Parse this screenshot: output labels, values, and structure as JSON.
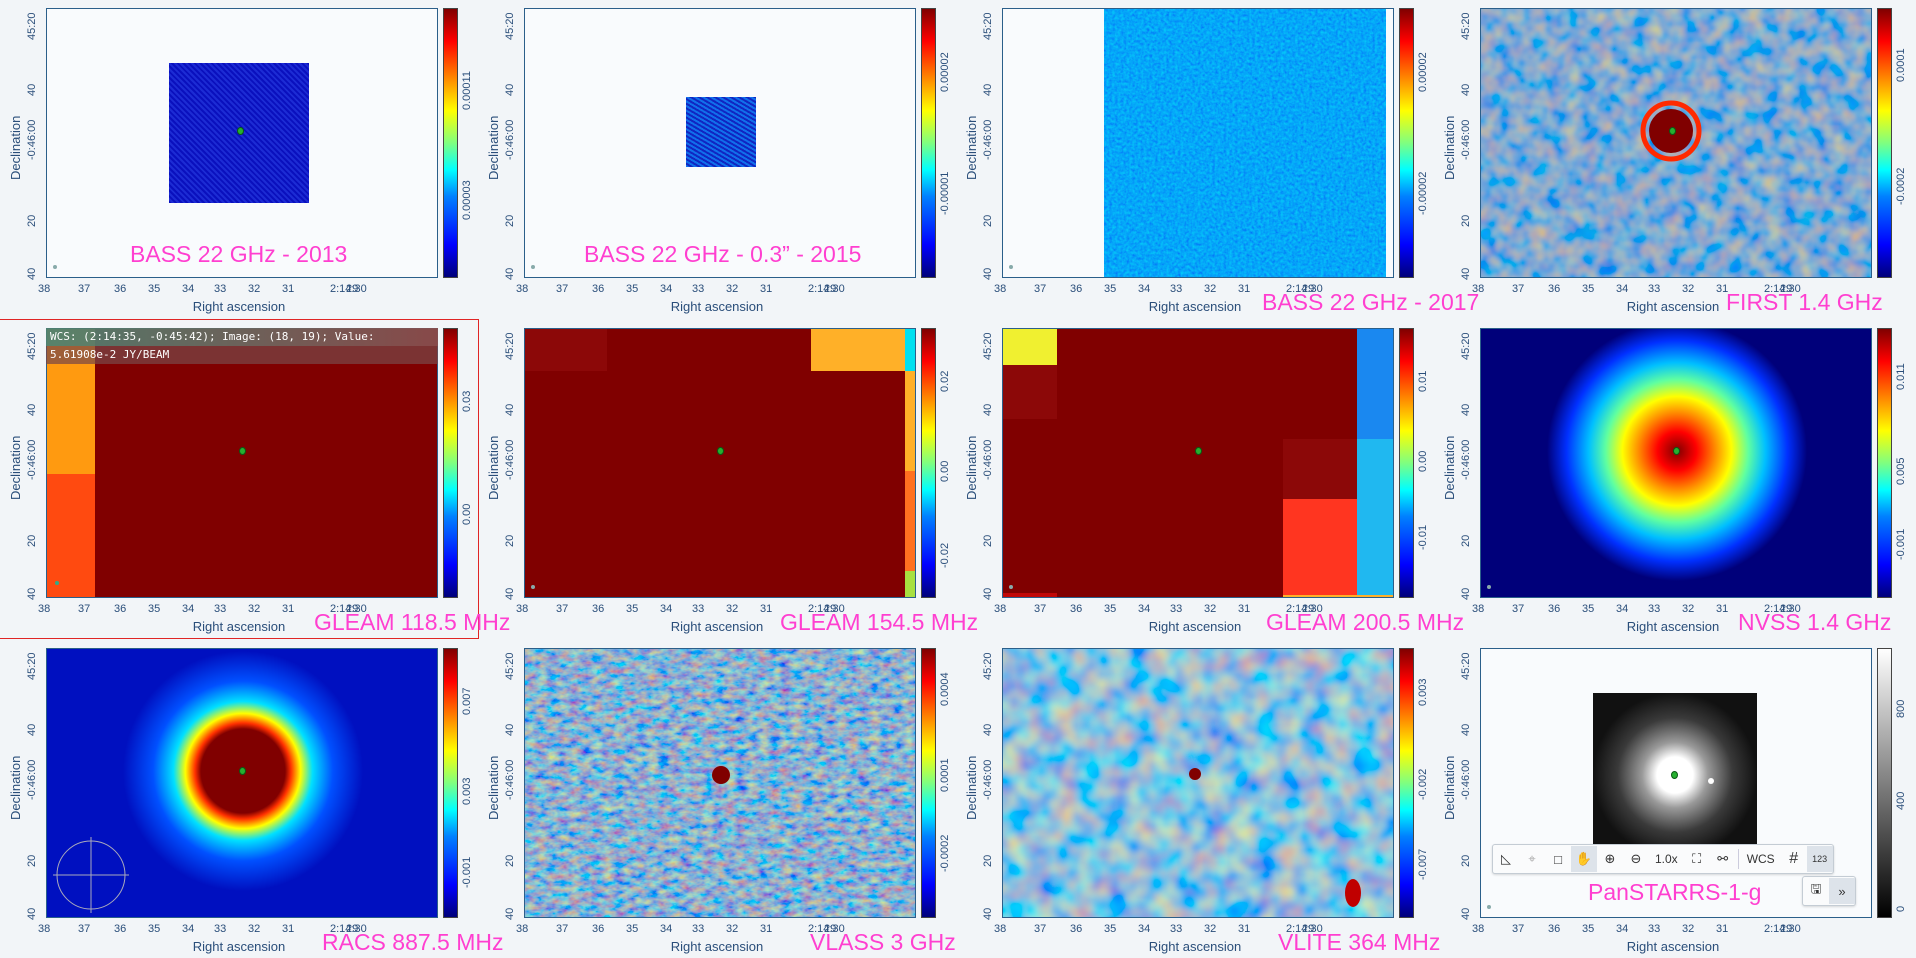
{
  "axis": {
    "xlabel": "Right ascension",
    "ylabel": "Declination",
    "xticks": [
      "38",
      "37",
      "36",
      "35",
      "34",
      "33",
      "32",
      "31",
      "2:14:30",
      "29"
    ],
    "yticks": [
      "45:20",
      "40",
      "-0:46:00",
      "20",
      "40"
    ]
  },
  "panels": [
    {
      "title": "BASS 22 GHz - 2013",
      "cbar": [
        "0.00011",
        "0.00003"
      ]
    },
    {
      "title": "BASS 22 GHz - 0.3” - 2015",
      "cbar": [
        "0.00002",
        "-0.00001"
      ]
    },
    {
      "title": "BASS 22 GHz - 2017",
      "cbar": [
        "0.00002",
        "-0.00002"
      ]
    },
    {
      "title": "FIRST 1.4 GHz",
      "cbar": [
        "0.0001",
        "-0.0002"
      ]
    },
    {
      "title": "GLEAM 118.5 MHz",
      "cbar": [
        "0.03",
        "0.00"
      ]
    },
    {
      "title": "GLEAM 154.5 MHz",
      "cbar": [
        "0.02",
        "0.00",
        "-0.02"
      ]
    },
    {
      "title": "GLEAM 200.5 MHz",
      "cbar": [
        "0.01",
        "0.00",
        "-0.01"
      ]
    },
    {
      "title": "NVSS 1.4 GHz",
      "cbar": [
        "0.011",
        "0.005",
        "-0.001"
      ]
    },
    {
      "title": "RACS 887.5 MHz",
      "cbar": [
        "0.007",
        "0.003",
        "-0.001"
      ]
    },
    {
      "title": "VLASS 3 GHz",
      "cbar": [
        "0.0004",
        "0.0001",
        "-0.0002"
      ]
    },
    {
      "title": "VLITE 364 MHz",
      "cbar": [
        "0.003",
        "-0.002",
        "-0.007"
      ]
    },
    {
      "title": "PanSTARRS-1-g",
      "cbar": [
        "800",
        "400",
        "0"
      ]
    }
  ],
  "readout": {
    "line1": "WCS: (2:14:35, -0:45:42); Image: (18, 19); Value:",
    "line2": "5.61908e-2 JY/BEAM"
  },
  "toolbar": {
    "zoom_level": "1.0x",
    "wcs_label": "WCS",
    "pixel_label": "123"
  }
}
